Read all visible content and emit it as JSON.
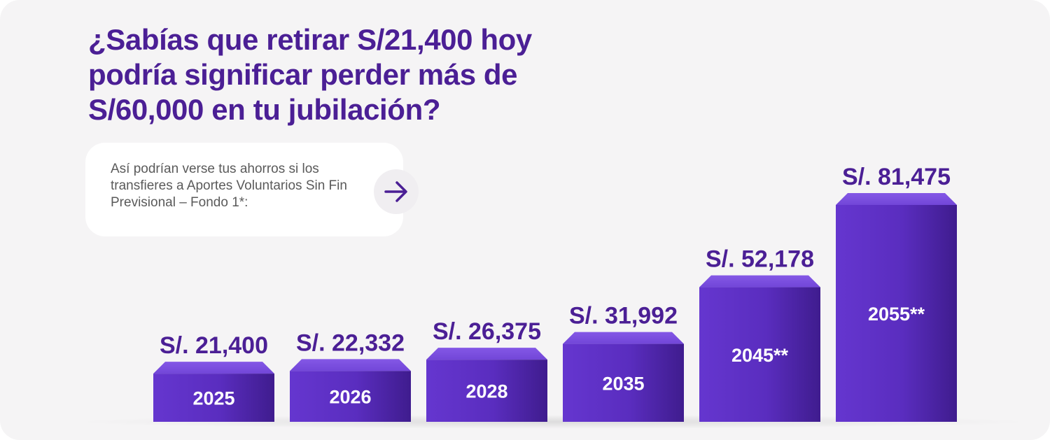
{
  "headline": "¿Sabías que retirar S/21,400 hoy podría significar perder más de S/60,000 en tu jubilación?",
  "info": {
    "text": "Así podrían verse tus ahorros si los transfieres a Aportes Voluntarios Sin Fin Previsional – Fondo 1*:",
    "arrow_icon": "arrow-right-icon"
  },
  "colors": {
    "brand_purple": "#4b1f95",
    "bar_front": "#5b2fc0",
    "bar_top": "#7a4fe0",
    "background": "#f5f4f5"
  },
  "chart_data": {
    "type": "bar",
    "title": "",
    "xlabel": "",
    "ylabel": "",
    "categories": [
      "2025",
      "2026",
      "2028",
      "2035",
      "2045**",
      "2055**"
    ],
    "values": [
      21400,
      22332,
      26375,
      31992,
      52178,
      81475
    ],
    "value_labels": [
      "S/. 21,400",
      "S/. 22,332",
      "S/. 26,375",
      "S/. 31,992",
      "S/. 52,178",
      "S/. 81,475"
    ],
    "ylim": [
      0,
      90000
    ]
  }
}
